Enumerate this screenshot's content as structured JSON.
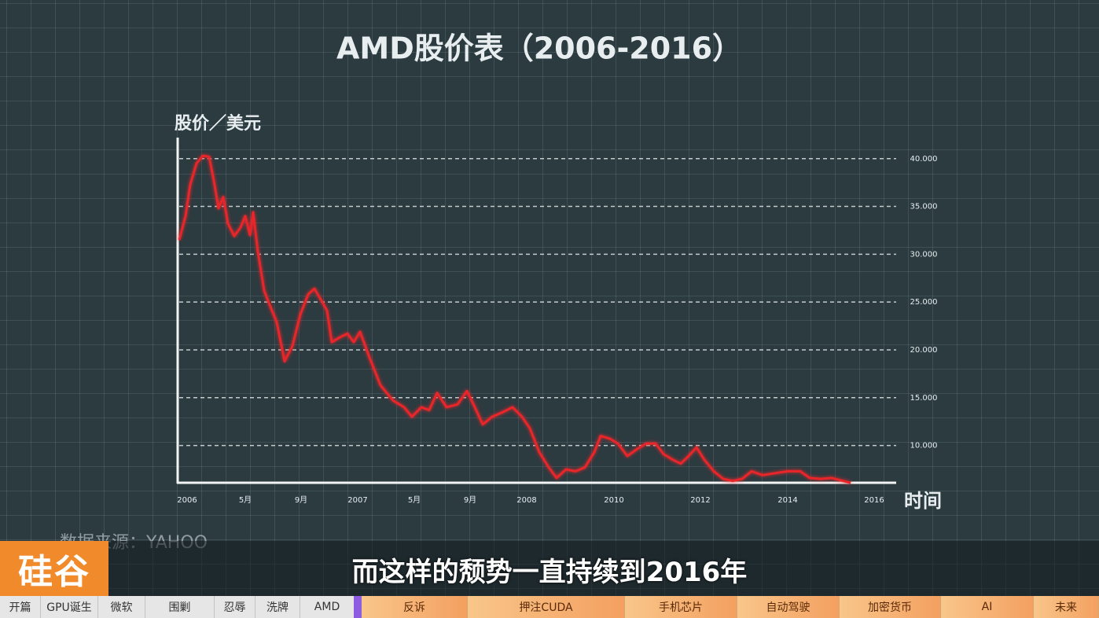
{
  "chart_data": {
    "type": "line",
    "title": "AMD股价表（2006-2016）",
    "ylabel": "股价／美元",
    "xlabel": "时间",
    "color": "#e8262b",
    "grid": true,
    "x": [
      -10,
      -2,
      4,
      12,
      20,
      28,
      34,
      40,
      46,
      52,
      60,
      68,
      74,
      80,
      84,
      90,
      98,
      106,
      114,
      124,
      134,
      144,
      154,
      162,
      172,
      178,
      184,
      194,
      204,
      212,
      220,
      232,
      246,
      262,
      276,
      286,
      298,
      308,
      318,
      330,
      344,
      356,
      366,
      376,
      388,
      402,
      414,
      426,
      436,
      448,
      460,
      470,
      482,
      494,
      506,
      518,
      526,
      538,
      548,
      560,
      572,
      584,
      596,
      606,
      618,
      628,
      638,
      648,
      658,
      670,
      682,
      694,
      706,
      718,
      732,
      748,
      764,
      780,
      792,
      806,
      820,
      834,
      844
    ],
    "values": [
      31.5,
      34,
      37.3,
      39.5,
      40.3,
      40.2,
      37.7,
      34.8,
      36,
      33.2,
      31.9,
      32.8,
      34,
      32,
      34.4,
      30.3,
      26.2,
      24.5,
      22.9,
      18.8,
      20.4,
      23.7,
      25.8,
      26.4,
      25,
      24.1,
      20.8,
      21.3,
      21.7,
      20.8,
      21.9,
      19.2,
      16.3,
      14.7,
      14,
      13,
      14,
      13.7,
      15.5,
      14,
      14.3,
      15.7,
      14,
      12.2,
      13,
      13.5,
      14,
      13,
      11.8,
      9.3,
      7.7,
      6.6,
      7.5,
      7.3,
      7.7,
      9.3,
      11,
      10.7,
      10.2,
      8.9,
      9.6,
      10.2,
      10.2,
      9.1,
      8.5,
      8.1,
      8.9,
      9.8,
      8.5,
      7.3,
      6.5,
      6.3,
      6.5,
      7.3,
      6.9,
      7.1,
      7.3,
      7.3,
      6.6,
      6.5,
      6.6,
      6.3,
      6.1
    ],
    "xlim": [
      -12,
      902
    ],
    "ylim": [
      6.1,
      42.2
    ],
    "xticks": [
      {
        "value": 0,
        "label": "2006"
      },
      {
        "value": 74,
        "label": "5月"
      },
      {
        "value": 145,
        "label": "9月"
      },
      {
        "value": 217,
        "label": "2007"
      },
      {
        "value": 289,
        "label": "5月"
      },
      {
        "value": 360,
        "label": "9月"
      },
      {
        "value": 432,
        "label": "2008"
      },
      {
        "value": 543,
        "label": "2010"
      },
      {
        "value": 653,
        "label": "2012"
      },
      {
        "value": 764,
        "label": "2014"
      },
      {
        "value": 874,
        "label": "2016"
      }
    ],
    "yticks": [
      {
        "value": 10,
        "label": "10.000"
      },
      {
        "value": 15,
        "label": "15.000"
      },
      {
        "value": 20,
        "label": "20.000"
      },
      {
        "value": 25,
        "label": "25.000"
      },
      {
        "value": 30,
        "label": "30.000"
      },
      {
        "value": 35,
        "label": "35.000"
      },
      {
        "value": 40,
        "label": "40.000"
      }
    ]
  },
  "source": "数据来源：YAHOO",
  "logo": "硅谷",
  "subtitle": "而这样的颓势一直持续到2016年",
  "nav": [
    "开篇",
    "GPU诞生",
    "微软",
    "围剿",
    "忍辱",
    "洗牌",
    "AMD",
    "反诉",
    "押注CUDA",
    "手机芯片",
    "自动驾驶",
    "加密货币",
    "AI",
    "未来"
  ]
}
